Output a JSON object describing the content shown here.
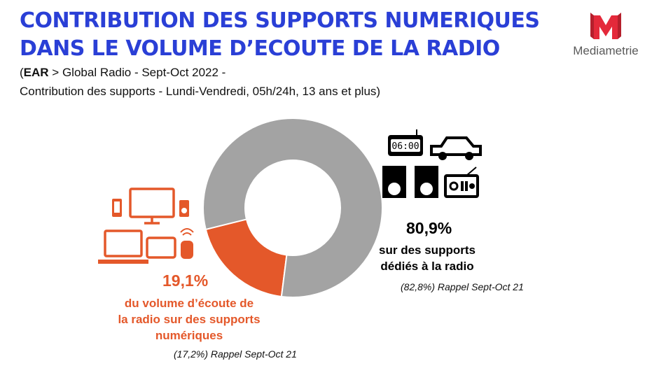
{
  "header": {
    "title_line1": "CONTRIBUTION DES SUPPORTS NUMERIQUES",
    "title_line2": "DANS LE VOLUME D’ECOUTE DE LA RADIO",
    "subtitle_paren": "(",
    "subtitle_bold": "EAR",
    "subtitle_rest": " > Global Radio - Sept-Oct 2022 -",
    "subtitle_line2": "Contribution des supports - Lundi-Vendredi, 05h/24h, 13 ans et plus)"
  },
  "logo": {
    "text": "Mediametrie",
    "icon": "mediametrie-m-logo",
    "color": "#e4293a"
  },
  "clock_display": "06:00",
  "colors": {
    "digital": "#e4582a",
    "radio": "#a3a3a3",
    "title": "#2a3fd6"
  },
  "chart_data": {
    "type": "pie",
    "variant": "donut",
    "slices": [
      {
        "value": 19.1,
        "value_label": "19,1%",
        "label_lines": [
          "du volume d’écoute de",
          "la radio sur des supports",
          "numériques"
        ],
        "recall_value": 17.2,
        "recall_text": "(17,2%)  Rappel Sept-Oct 21",
        "color": "#e4582a",
        "icon": "digital-devices-icon"
      },
      {
        "value": 80.9,
        "value_label": "80,9%",
        "label_lines": [
          "sur des supports",
          "dédiés à la radio"
        ],
        "recall_value": 82.8,
        "recall_text": "(82,8%)  Rappel Sept-Oct 21",
        "color": "#a3a3a3",
        "icon": "radio-devices-icon"
      }
    ]
  }
}
